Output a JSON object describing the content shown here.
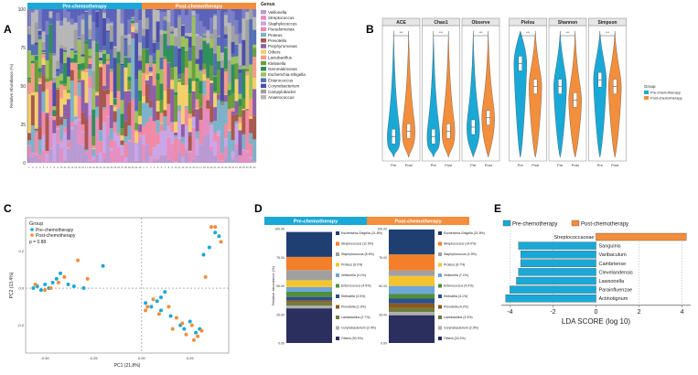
{
  "panel_labels": {
    "a": "A",
    "b": "B",
    "c": "C",
    "d": "D",
    "e": "E"
  },
  "colors": {
    "pre": "#1aa9d6",
    "post": "#f28e3c",
    "taxa": [
      "#b99ad3",
      "#e58ec0",
      "#c9a6e8",
      "#f08aa6",
      "#7db2c9",
      "#a8584e",
      "#8e5fa8",
      "#f4d06b",
      "#f59b8a",
      "#6a9e3c",
      "#2f8f5a",
      "#9cc25a",
      "#556fb5",
      "#4c4ea8",
      "#a0a0a0",
      "#b7b7b7",
      "#7b7fc4",
      "#5b62b8"
    ],
    "d_taxa": [
      "#1f3f73",
      "#f47f2a",
      "#a0a0a0",
      "#f4c430",
      "#6fa6d8",
      "#4f8f3c",
      "#2b4f8f",
      "#8a5a1f",
      "#6b7d3a",
      "#b0b0b0",
      "#2a2f5e",
      "#3c7fc2"
    ]
  },
  "chart_data": [
    {
      "id": "A",
      "type": "bar",
      "subtype": "stacked-100",
      "title": "",
      "xlabel": "",
      "ylabel": "Relative Abundance (%)",
      "ylim": [
        0,
        100
      ],
      "yticks": [
        "0",
        "25",
        "50",
        "75",
        "100"
      ],
      "group_labels": [
        "Pre-chemotherapy",
        "Post-chemotherapy"
      ],
      "legend_title": "Genus",
      "legend": [
        "Veillonella",
        "Streptococcus",
        "Staphylococcus",
        "Pseudomonas",
        "Proteus",
        "Prevotella",
        "Porphyromonas",
        "Others",
        "Lactobacillus",
        "Klebsiella",
        "Gemmatimonas",
        "Escherichia-Shigella",
        "Enterococcus",
        "Corynebacterium",
        "Campylobacter",
        "Anaerococcus"
      ],
      "samples_per_group": 32
    },
    {
      "id": "B",
      "type": "violin",
      "legend_title": "Group",
      "legend": [
        "Pre-chemotherapy",
        "Post-chemotherapy"
      ],
      "categories": [
        "Pre",
        "Post"
      ],
      "sig_label": "***",
      "facets": [
        {
          "title": "ACE",
          "pre_median": 0.18,
          "post_median": 0.22
        },
        {
          "title": "Chao1",
          "pre_median": 0.18,
          "post_median": 0.22
        },
        {
          "title": "Observe",
          "pre_median": 0.25,
          "post_median": 0.32
        },
        {
          "title": "Pielou",
          "pre_median": 0.72,
          "post_median": 0.55
        },
        {
          "title": "Shannon",
          "pre_median": 0.55,
          "post_median": 0.45
        },
        {
          "title": "Simpson",
          "pre_median": 0.6,
          "post_median": 0.55
        }
      ]
    },
    {
      "id": "C",
      "type": "scatter",
      "legend_title": "Group",
      "legend": [
        "Pre-chemotherapy",
        "Post-chemotherapy"
      ],
      "annotation": "p = 0.88",
      "xlabel": "PC1 (21.8%)",
      "ylabel": "PC2 (13.4%)",
      "xlim": [
        -0.6,
        0.45
      ],
      "ylim": [
        -0.35,
        0.38
      ],
      "xticks": [
        -0.5,
        -0.25,
        0.0,
        0.25
      ],
      "yticks": [
        -0.2,
        0.0,
        0.2
      ],
      "series": [
        {
          "name": "Pre-chemotherapy",
          "points": [
            [
              -0.56,
              0.0
            ],
            [
              -0.54,
              0.01
            ],
            [
              -0.52,
              -0.01
            ],
            [
              -0.5,
              0.02
            ],
            [
              -0.48,
              0.0
            ],
            [
              -0.46,
              0.03
            ],
            [
              -0.44,
              0.05
            ],
            [
              -0.42,
              0.08
            ],
            [
              -0.38,
              0.02
            ],
            [
              -0.35,
              0.01
            ],
            [
              -0.3,
              0.0
            ],
            [
              -0.2,
              0.12
            ],
            [
              0.02,
              -0.08
            ],
            [
              0.05,
              -0.1
            ],
            [
              0.08,
              -0.07
            ],
            [
              0.1,
              -0.12
            ],
            [
              0.15,
              -0.15
            ],
            [
              0.2,
              -0.2
            ],
            [
              0.22,
              -0.22
            ],
            [
              0.25,
              -0.18
            ],
            [
              0.28,
              -0.24
            ],
            [
              0.3,
              -0.22
            ],
            [
              0.32,
              0.18
            ],
            [
              0.35,
              0.22
            ],
            [
              0.38,
              0.3
            ],
            [
              0.4,
              0.28
            ],
            [
              0.1,
              -0.05
            ],
            [
              0.12,
              -0.02
            ]
          ]
        },
        {
          "name": "Post-chemotherapy",
          "points": [
            [
              -0.55,
              0.02
            ],
            [
              -0.5,
              -0.01
            ],
            [
              -0.47,
              0.0
            ],
            [
              -0.43,
              0.03
            ],
            [
              -0.4,
              0.06
            ],
            [
              -0.33,
              0.15
            ],
            [
              -0.28,
              0.05
            ],
            [
              0.03,
              -0.1
            ],
            [
              0.06,
              -0.06
            ],
            [
              0.09,
              -0.14
            ],
            [
              0.14,
              -0.1
            ],
            [
              0.18,
              -0.16
            ],
            [
              0.21,
              -0.19
            ],
            [
              0.23,
              -0.25
            ],
            [
              0.26,
              -0.2
            ],
            [
              0.29,
              -0.26
            ],
            [
              0.31,
              -0.23
            ],
            [
              0.33,
              0.06
            ],
            [
              0.36,
              0.33
            ],
            [
              0.38,
              0.33
            ],
            [
              0.41,
              0.25
            ],
            [
              0.02,
              -0.12
            ],
            [
              0.16,
              -0.22
            ],
            [
              0.27,
              -0.28
            ]
          ]
        }
      ]
    },
    {
      "id": "D",
      "type": "bar",
      "subtype": "stacked-100",
      "ylabel": "Relative Abundance (%)",
      "yticks": [
        "0.00",
        "25.00",
        "50.00",
        "75.00",
        "100.00"
      ],
      "groups": [
        {
          "title": "Pre-chemotherapy",
          "legend": [
            "Escherichia-Shigella (21.8%)",
            "Streptococcus (11.5%)",
            "Staphylococcus (8.9%)",
            "Proteus (6.0%)",
            "Veillonella (4.1%)",
            "Enterococcus (4.5%)",
            "Klebsiella (3.0%)",
            "Prevotella (1.9%)",
            "Lactobacillus (2.7%)",
            "Corynebacterium (2.4%)",
            "Others (30.3%)"
          ],
          "values": [
            30.3,
            2.4,
            2.7,
            1.9,
            3.0,
            4.5,
            4.1,
            6.0,
            8.9,
            11.5,
            21.8
          ]
        },
        {
          "title": "Post-chemotherapy",
          "legend": [
            "Escherichia-Shigella (21.8%)",
            "Streptococcus (14.0%)",
            "Staphylococcus (4.9%)",
            "Proteus (8.7%)",
            "Veillonella (7.1%)",
            "Enterococcus (4.0%)",
            "Klebsiella (4.1%)",
            "Prevotella (4.2%)",
            "Lactobacillus (3.3%)",
            "Corynebacterium (2.9%)",
            "Others (24.3%)"
          ],
          "values": [
            24.3,
            2.9,
            3.3,
            4.2,
            4.1,
            4.0,
            7.1,
            8.7,
            4.9,
            14.0,
            21.8
          ]
        }
      ]
    },
    {
      "id": "E",
      "type": "bar",
      "orientation": "horizontal",
      "legend": [
        "Pre-chemotherapy",
        "Post-chemotherapy"
      ],
      "xlabel": "LDA SCORE (log 10)",
      "xlim": [
        -4.4,
        4.4
      ],
      "xticks": [
        "-4",
        "-2",
        "0",
        "2",
        "4"
      ],
      "bars": [
        {
          "label": "Streptococcaceae",
          "value": 4.2,
          "group": "Post-chemotherapy"
        },
        {
          "label": "Sanguinis",
          "value": -3.6,
          "group": "Pre-chemotherapy"
        },
        {
          "label": "Varibaculum",
          "value": -3.5,
          "group": "Pre-chemotherapy"
        },
        {
          "label": "Cambriense",
          "value": -3.5,
          "group": "Pre-chemotherapy"
        },
        {
          "label": "Clevelandensis",
          "value": -3.6,
          "group": "Pre-chemotherapy"
        },
        {
          "label": "Lawsonella",
          "value": -3.7,
          "group": "Pre-chemotherapy"
        },
        {
          "label": "Parainfluenzae",
          "value": -4.0,
          "group": "Pre-chemotherapy"
        },
        {
          "label": "Actinotignum",
          "value": -4.2,
          "group": "Pre-chemotherapy"
        }
      ]
    }
  ]
}
